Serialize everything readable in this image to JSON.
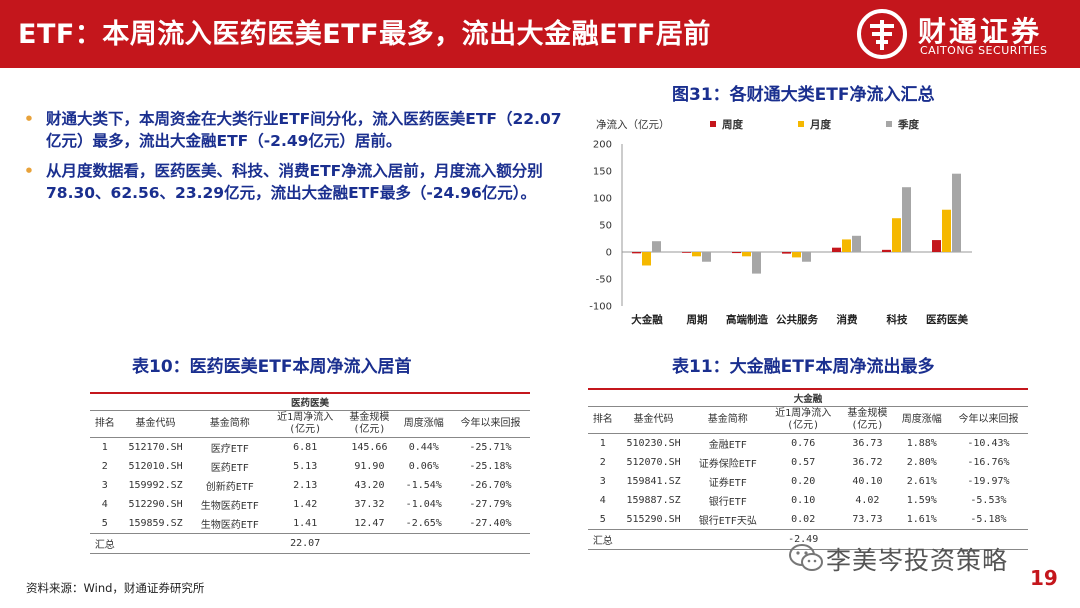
{
  "header": {
    "title": "ETF：本周流入医药医美ETF最多，流出大金融ETF居前",
    "logo_cn": "财通证券",
    "logo_en": "CAITONG SECURITIES"
  },
  "bullets": [
    "财通大类下，本周资金在大类行业ETF间分化，流入医药医美ETF（22.07亿元）最多，流出大金融ETF（-2.49亿元）居前。",
    "从月度数据看，医药医美、科技、消费ETF净流入居前，月度流入额分别78.30、62.56、23.29亿元，流出大金融ETF最多（-24.96亿元）。"
  ],
  "chart_title": "图31：各财通大类ETF净流入汇总",
  "chart_data": {
    "type": "bar",
    "ylabel": "净流入（亿元）",
    "ylim": [
      -100,
      200
    ],
    "yticks": [
      200,
      150,
      100,
      50,
      0,
      -50,
      -100
    ],
    "categories": [
      "大金融",
      "周期",
      "高端制造",
      "公共服务",
      "消费",
      "科技",
      "医药医美"
    ],
    "series": [
      {
        "name": "周度",
        "color": "#c4161c",
        "values": [
          -2.49,
          -1.5,
          -2,
          -3,
          8,
          4,
          22.07
        ]
      },
      {
        "name": "月度",
        "color": "#f5b800",
        "values": [
          -24.96,
          -8,
          -8,
          -10,
          23.29,
          62.56,
          78.3
        ]
      },
      {
        "name": "季度",
        "color": "#a6a6a6",
        "values": [
          20,
          -18,
          -40,
          -18,
          30,
          120,
          145
        ]
      }
    ],
    "legend": "top"
  },
  "table10": {
    "title": "表10：医药医美ETF本周净流入居首",
    "group": "医药医美",
    "headers": [
      "排名",
      "基金代码",
      "基金简称",
      "近1周净流入\n(亿元)",
      "基金规模\n(亿元)",
      "周度涨幅",
      "今年以来回报"
    ],
    "rows": [
      [
        "1",
        "512170.SH",
        "医疗ETF",
        "6.81",
        "145.66",
        "0.44%",
        "-25.71%"
      ],
      [
        "2",
        "512010.SH",
        "医药ETF",
        "5.13",
        "91.90",
        "0.06%",
        "-25.18%"
      ],
      [
        "3",
        "159992.SZ",
        "创新药ETF",
        "2.13",
        "43.20",
        "-1.54%",
        "-26.70%"
      ],
      [
        "4",
        "512290.SH",
        "生物医药ETF",
        "1.42",
        "37.32",
        "-1.04%",
        "-27.79%"
      ],
      [
        "5",
        "159859.SZ",
        "生物医药ETF",
        "1.41",
        "12.47",
        "-2.65%",
        "-27.40%"
      ]
    ],
    "sum_label": "汇总",
    "sum_value": "22.07"
  },
  "table11": {
    "title": "表11：大金融ETF本周净流出最多",
    "group": "大金融",
    "headers": [
      "排名",
      "基金代码",
      "基金简称",
      "近1周净流入\n(亿元)",
      "基金规模\n(亿元)",
      "周度涨幅",
      "今年以来回报"
    ],
    "rows": [
      [
        "1",
        "510230.SH",
        "金融ETF",
        "0.76",
        "36.73",
        "1.88%",
        "-10.43%"
      ],
      [
        "2",
        "512070.SH",
        "证券保险ETF",
        "0.57",
        "36.72",
        "2.80%",
        "-16.76%"
      ],
      [
        "3",
        "159841.SZ",
        "证券ETF",
        "0.20",
        "40.10",
        "2.61%",
        "-19.97%"
      ],
      [
        "4",
        "159887.SZ",
        "银行ETF",
        "0.10",
        "4.02",
        "1.59%",
        "-5.53%"
      ],
      [
        "5",
        "515290.SH",
        "银行ETF天弘",
        "0.02",
        "73.73",
        "1.61%",
        "-5.18%"
      ]
    ],
    "sum_label": "汇总",
    "sum_value": "-2.49"
  },
  "source": "资料来源：Wind，财通证券研究所",
  "watermark": "李美岑投资策略",
  "page_number": "19"
}
